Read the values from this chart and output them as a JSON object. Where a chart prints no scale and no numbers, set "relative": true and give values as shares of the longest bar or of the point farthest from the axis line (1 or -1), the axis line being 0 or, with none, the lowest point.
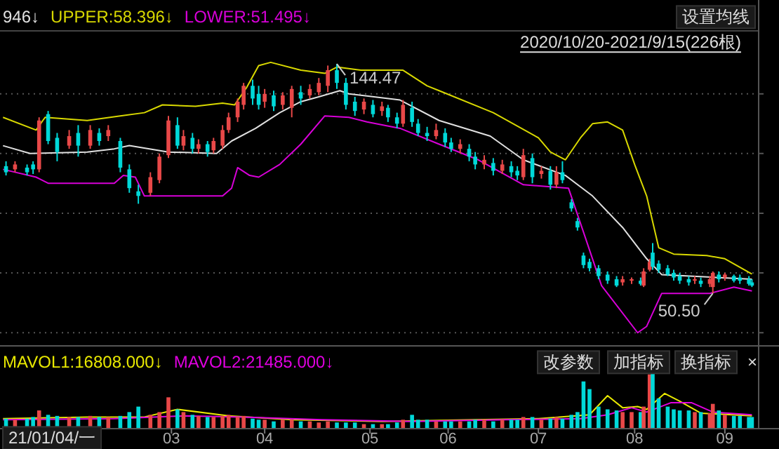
{
  "chart_data": [
    {
      "type": "candlestick",
      "xlim": [
        "2021-01-03",
        "2021-09-12"
      ],
      "ylim": [
        29.3,
        158.0
      ],
      "yticks": [
        {
          "value": 132.2,
          "label": null
        },
        {
          "value": 107.8,
          "label": null
        },
        {
          "value": 83.3,
          "label": null
        },
        {
          "value": 58.9,
          "label": null
        },
        {
          "value": 34.4,
          "label": null
        }
      ],
      "grid": "y",
      "tick_labels": false,
      "legend": "top left",
      "x": [
        "2021-01-05",
        "2021-01-08",
        "2021-01-12",
        "2021-01-14",
        "2021-01-16",
        "2021-01-19",
        "2021-01-22",
        "2021-01-26",
        "2021-01-29",
        "2021-02-02",
        "2021-02-05",
        "2021-02-08",
        "2021-02-12",
        "2021-02-15",
        "2021-02-18",
        "2021-02-22",
        "2021-02-25",
        "2021-02-28",
        "2021-03-03",
        "2021-03-05",
        "2021-03-08",
        "2021-03-10",
        "2021-03-13",
        "2021-03-15",
        "2021-03-18",
        "2021-03-20",
        "2021-03-23",
        "2021-03-25",
        "2021-03-28",
        "2021-03-30",
        "2021-04-01",
        "2021-04-04",
        "2021-04-07",
        "2021-04-10",
        "2021-04-13",
        "2021-04-16",
        "2021-04-19",
        "2021-04-22",
        "2021-04-25",
        "2021-04-28",
        "2021-05-01",
        "2021-05-04",
        "2021-05-07",
        "2021-05-10",
        "2021-05-12",
        "2021-05-15",
        "2021-05-17",
        "2021-05-20",
        "2021-05-22",
        "2021-05-25",
        "2021-05-28",
        "2021-05-31",
        "2021-06-02",
        "2021-06-05",
        "2021-06-08",
        "2021-06-10",
        "2021-06-13",
        "2021-06-16",
        "2021-06-19",
        "2021-06-22",
        "2021-06-24",
        "2021-06-26",
        "2021-06-29",
        "2021-07-02",
        "2021-07-05",
        "2021-07-07",
        "2021-07-09",
        "2021-07-12",
        "2021-07-14",
        "2021-07-16",
        "2021-07-18",
        "2021-07-21",
        "2021-07-24",
        "2021-07-27",
        "2021-07-29",
        "2021-08-01",
        "2021-08-04",
        "2021-08-05",
        "2021-08-07",
        "2021-08-08",
        "2021-08-10",
        "2021-08-13",
        "2021-08-15",
        "2021-08-17",
        "2021-08-20",
        "2021-08-22",
        "2021-08-24",
        "2021-08-27",
        "2021-08-28",
        "2021-08-30",
        "2021-09-01",
        "2021-09-04",
        "2021-09-06",
        "2021-09-09",
        "2021-09-10"
      ],
      "ohlc": [
        [
          102.6,
          104.6,
          98.8,
          100.1
        ],
        [
          101.3,
          104.6,
          100.1,
          103.3
        ],
        [
          102.0,
          103.3,
          98.8,
          100.1
        ],
        [
          103.3,
          104.6,
          99.4,
          101.3
        ],
        [
          101.3,
          122.6,
          100.1,
          121.3
        ],
        [
          123.9,
          125.2,
          111.6,
          112.9
        ],
        [
          114.2,
          116.2,
          104.6,
          108.4
        ],
        [
          111.0,
          117.4,
          109.7,
          114.9
        ],
        [
          116.2,
          119.4,
          106.5,
          111.0
        ],
        [
          111.0,
          119.4,
          109.7,
          117.4
        ],
        [
          116.2,
          118.1,
          111.0,
          112.9
        ],
        [
          114.9,
          119.4,
          112.9,
          117.4
        ],
        [
          112.9,
          114.2,
          100.1,
          102.0
        ],
        [
          101.3,
          103.3,
          91.7,
          93.6
        ],
        [
          92.3,
          95.0,
          87.2,
          90.4
        ],
        [
          91.7,
          100.1,
          90.4,
          98.1
        ],
        [
          96.9,
          107.8,
          95.6,
          106.5
        ],
        [
          107.1,
          123.2,
          105.9,
          121.3
        ],
        [
          119.4,
          122.6,
          109.7,
          111.0
        ],
        [
          111.0,
          117.4,
          109.1,
          114.9
        ],
        [
          114.2,
          116.2,
          107.8,
          109.7
        ],
        [
          109.7,
          113.6,
          107.8,
          111.6
        ],
        [
          111.6,
          112.9,
          106.5,
          108.4
        ],
        [
          109.1,
          114.2,
          107.8,
          112.9
        ],
        [
          111.0,
          119.4,
          109.7,
          117.4
        ],
        [
          117.4,
          124.5,
          116.2,
          122.6
        ],
        [
          122.6,
          130.3,
          120.7,
          129.0
        ],
        [
          127.7,
          136.7,
          125.8,
          135.5
        ],
        [
          135.5,
          138.0,
          127.7,
          130.3
        ],
        [
          132.2,
          135.5,
          125.8,
          127.7
        ],
        [
          129.0,
          134.2,
          126.5,
          132.2
        ],
        [
          131.6,
          133.5,
          125.2,
          127.1
        ],
        [
          127.7,
          132.9,
          125.8,
          131.6
        ],
        [
          126.5,
          135.5,
          122.6,
          134.2
        ],
        [
          132.9,
          135.5,
          127.7,
          130.3
        ],
        [
          131.6,
          136.1,
          130.3,
          134.2
        ],
        [
          132.9,
          138.7,
          131.6,
          136.7
        ],
        [
          135.5,
          143.8,
          132.9,
          141.9
        ],
        [
          141.9,
          144.47,
          134.2,
          136.7
        ],
        [
          136.7,
          138.7,
          125.8,
          127.7
        ],
        [
          129.0,
          131.0,
          123.2,
          125.2
        ],
        [
          125.8,
          130.3,
          123.9,
          129.0
        ],
        [
          127.7,
          129.7,
          122.6,
          123.9
        ],
        [
          125.2,
          129.0,
          123.2,
          127.1
        ],
        [
          126.5,
          127.7,
          120.7,
          122.6
        ],
        [
          122.6,
          124.5,
          118.1,
          120.0
        ],
        [
          120.0,
          129.7,
          118.7,
          127.7
        ],
        [
          126.5,
          129.0,
          118.7,
          120.7
        ],
        [
          120.0,
          121.9,
          114.9,
          116.2
        ],
        [
          116.2,
          118.7,
          112.9,
          114.9
        ],
        [
          114.9,
          120.0,
          113.6,
          117.4
        ],
        [
          116.2,
          118.1,
          110.4,
          112.3
        ],
        [
          112.3,
          114.2,
          108.4,
          109.7
        ],
        [
          109.7,
          113.6,
          107.8,
          111.6
        ],
        [
          109.7,
          111.6,
          104.6,
          106.5
        ],
        [
          106.5,
          108.4,
          101.3,
          103.3
        ],
        [
          103.3,
          107.1,
          101.3,
          105.2
        ],
        [
          103.9,
          105.9,
          98.8,
          100.7
        ],
        [
          100.7,
          105.2,
          99.4,
          103.3
        ],
        [
          102.6,
          104.6,
          98.1,
          100.1
        ],
        [
          100.7,
          102.6,
          96.9,
          98.8
        ],
        [
          98.1,
          109.7,
          96.9,
          107.1
        ],
        [
          105.9,
          107.8,
          95.6,
          98.1
        ],
        [
          99.4,
          102.6,
          97.5,
          100.7
        ],
        [
          100.7,
          102.6,
          93.0,
          95.0
        ],
        [
          95.0,
          102.6,
          93.6,
          100.1
        ],
        [
          100.1,
          104.6,
          95.6,
          96.9
        ],
        [
          87.8,
          89.1,
          84.0,
          85.3
        ],
        [
          80.1,
          81.4,
          76.2,
          77.5
        ],
        [
          66.0,
          67.2,
          60.8,
          62.1
        ],
        [
          63.4,
          64.7,
          59.5,
          60.8
        ],
        [
          60.8,
          62.1,
          56.3,
          57.6
        ],
        [
          58.2,
          59.5,
          54.4,
          55.7
        ],
        [
          56.3,
          57.6,
          53.1,
          53.7
        ],
        [
          55.0,
          57.6,
          53.7,
          56.3
        ],
        [
          55.7,
          57.0,
          54.4,
          56.3
        ],
        [
          55.7,
          57.0,
          53.7,
          54.4
        ],
        [
          53.7,
          60.8,
          53.1,
          59.5
        ],
        [
          60.2,
          64.7,
          59.5,
          63.4
        ],
        [
          67.2,
          71.1,
          60.2,
          61.4
        ],
        [
          62.7,
          64.0,
          58.9,
          60.2
        ],
        [
          60.8,
          62.1,
          57.6,
          58.2
        ],
        [
          58.9,
          60.2,
          55.7,
          57.0
        ],
        [
          57.6,
          58.9,
          54.4,
          55.7
        ],
        [
          56.3,
          57.6,
          53.7,
          55.0
        ],
        [
          55.7,
          57.6,
          54.4,
          56.3
        ],
        [
          55.7,
          57.0,
          53.1,
          54.4
        ],
        [
          54.4,
          57.6,
          53.1,
          56.3
        ],
        [
          53.1,
          59.5,
          50.5,
          58.9
        ],
        [
          58.2,
          59.5,
          55.0,
          56.3
        ],
        [
          57.0,
          58.9,
          55.7,
          58.2
        ],
        [
          57.6,
          58.2,
          55.0,
          55.7
        ],
        [
          57.0,
          58.2,
          54.4,
          55.7
        ],
        [
          56.3,
          57.6,
          53.7,
          54.4
        ],
        [
          55.0,
          56.3,
          53.1,
          53.7
        ]
      ],
      "colors": [
        "#00d8d8",
        "#e84848",
        "#00d8d8",
        "#00d8d8",
        "#e84848",
        "#00d8d8",
        "#00d8d8",
        "#e84848",
        "#00d8d8",
        "#e84848",
        "#00d8d8",
        "#e84848",
        "#00d8d8",
        "#00d8d8",
        "#00d8d8",
        "#e84848",
        "#e84848",
        "#e84848",
        "#00d8d8",
        "#e84848",
        "#00d8d8",
        "#e84848",
        "#00d8d8",
        "#e84848",
        "#e84848",
        "#e84848",
        "#e84848",
        "#e84848",
        "#00d8d8",
        "#00d8d8",
        "#e84848",
        "#00d8d8",
        "#e84848",
        "#e84848",
        "#00d8d8",
        "#e84848",
        "#e84848",
        "#e84848",
        "#00d8d8",
        "#00d8d8",
        "#00d8d8",
        "#e84848",
        "#00d8d8",
        "#e84848",
        "#00d8d8",
        "#00d8d8",
        "#e84848",
        "#00d8d8",
        "#00d8d8",
        "#00d8d8",
        "#e84848",
        "#00d8d8",
        "#00d8d8",
        "#e84848",
        "#00d8d8",
        "#00d8d8",
        "#e84848",
        "#00d8d8",
        "#e84848",
        "#00d8d8",
        "#00d8d8",
        "#e84848",
        "#00d8d8",
        "#e84848",
        "#00d8d8",
        "#e84848",
        "#00d8d8",
        "#00d8d8",
        "#00d8d8",
        "#00d8d8",
        "#00d8d8",
        "#00d8d8",
        "#00d8d8",
        "#00d8d8",
        "#e84848",
        "#e84848",
        "#00d8d8",
        "#e84848",
        "#e84848",
        "#00d8d8",
        "#00d8d8",
        "#00d8d8",
        "#00d8d8",
        "#00d8d8",
        "#00d8d8",
        "#e84848",
        "#00d8d8",
        "#e84848",
        "#e84848",
        "#00d8d8",
        "#e84848",
        "#00d8d8",
        "#00d8d8",
        "#00d8d8",
        "#00d8d8"
      ],
      "series": [
        {
          "type": "line",
          "name": "946↓",
          "color": "#e0e0e0",
          "x": [
            "2021-01-04",
            "2021-01-13",
            "2021-02-01",
            "2021-02-10",
            "2021-02-15",
            "2021-02-28",
            "2021-03-16",
            "2021-03-21",
            "2021-03-29",
            "2021-04-06",
            "2021-04-13",
            "2021-04-19",
            "2021-04-26",
            "2021-04-29",
            "2021-05-16",
            "2021-05-29",
            "2021-06-15",
            "2021-06-26",
            "2021-07-10",
            "2021-07-19",
            "2021-07-29",
            "2021-08-06",
            "2021-08-11",
            "2021-09-10"
          ],
          "values": [
            111.0,
            107.8,
            108.4,
            109.7,
            111.0,
            108.4,
            107.8,
            112.9,
            118.1,
            124.5,
            129.0,
            131.0,
            133.5,
            132.2,
            129.7,
            121.3,
            114.9,
            105.2,
            98.8,
            90.4,
            77.5,
            64.7,
            58.2,
            56.3
          ]
        },
        {
          "type": "line",
          "name": "UPPER:58.396↓",
          "color": "#d8d800",
          "x": [
            "2021-01-04",
            "2021-01-15",
            "2021-01-18",
            "2021-02-01",
            "2021-02-12",
            "2021-02-20",
            "2021-02-26",
            "2021-03-09",
            "2021-03-18",
            "2021-03-22",
            "2021-03-26",
            "2021-03-30",
            "2021-04-03",
            "2021-04-13",
            "2021-04-21",
            "2021-04-25",
            "2021-05-03",
            "2021-05-17",
            "2021-05-25",
            "2021-05-29",
            "2021-06-16",
            "2021-07-01",
            "2021-07-05",
            "2021-07-10",
            "2021-07-15",
            "2021-07-19",
            "2021-07-24",
            "2021-07-29",
            "2021-08-02",
            "2021-08-06",
            "2021-08-10",
            "2021-08-15",
            "2021-08-26",
            "2021-09-01",
            "2021-09-10"
          ],
          "values": [
            122.6,
            117.4,
            122.6,
            121.3,
            123.2,
            124.5,
            127.7,
            127.1,
            128.4,
            127.7,
            134.8,
            143.8,
            145.1,
            141.9,
            140.6,
            143.2,
            141.9,
            141.9,
            135.5,
            133.5,
            124.5,
            114.2,
            108.4,
            105.2,
            114.2,
            120.0,
            120.7,
            117.4,
            103.3,
            90.4,
            69.2,
            66.6,
            66.0,
            64.7,
            58.4
          ]
        },
        {
          "type": "line",
          "name": "LOWER:51.495↓",
          "color": "#d800d8",
          "x": [
            "2021-01-04",
            "2021-01-15",
            "2021-01-19",
            "2021-02-10",
            "2021-02-13",
            "2021-02-17",
            "2021-02-20",
            "2021-03-18",
            "2021-03-21",
            "2021-03-23",
            "2021-03-27",
            "2021-03-30",
            "2021-04-06",
            "2021-04-13",
            "2021-04-21",
            "2021-04-29",
            "2021-05-05",
            "2021-05-16",
            "2021-05-29",
            "2021-06-11",
            "2021-06-26",
            "2021-07-11",
            "2021-07-16",
            "2021-07-22",
            "2021-08-03",
            "2021-08-06",
            "2021-08-11",
            "2021-08-27",
            "2021-09-04",
            "2021-09-10"
          ],
          "values": [
            101.3,
            98.1,
            95.6,
            95.6,
            98.8,
            98.1,
            90.4,
            90.4,
            93.6,
            102.0,
            98.8,
            98.1,
            103.3,
            111.6,
            123.2,
            122.6,
            120.7,
            118.1,
            111.6,
            105.2,
            95.0,
            93.6,
            75.6,
            53.7,
            34.4,
            37.0,
            50.5,
            50.5,
            53.1,
            51.5
          ]
        }
      ],
      "annotations": [
        "设置均线",
        "2020/10/20-2021/9/15(226根)",
        {
          "text": "144.47",
          "x": "2021-04-25",
          "y": 144.47
        },
        {
          "text": "50.50",
          "x": "2021-08-28",
          "y": 50.5
        }
      ]
    },
    {
      "type": "bar",
      "relative": true,
      "xlim": [
        "2021-01-03",
        "2021-09-12"
      ],
      "tick_labels": "x",
      "legend": "top left",
      "xticks": [
        {
          "value": "2021-03-01",
          "label": "03"
        },
        {
          "value": "2021-04-01",
          "label": "04"
        },
        {
          "value": "2021-05-06",
          "label": "05"
        },
        {
          "value": "2021-06-01",
          "label": "06"
        },
        {
          "value": "2021-07-01",
          "label": "07"
        },
        {
          "value": "2021-08-02",
          "label": "08"
        },
        {
          "value": "2021-09-01",
          "label": "09"
        }
      ],
      "x": [
        "2021-01-05",
        "2021-01-08",
        "2021-01-12",
        "2021-01-14",
        "2021-01-16",
        "2021-01-19",
        "2021-01-22",
        "2021-01-26",
        "2021-01-29",
        "2021-02-02",
        "2021-02-05",
        "2021-02-08",
        "2021-02-12",
        "2021-02-15",
        "2021-02-18",
        "2021-02-22",
        "2021-02-25",
        "2021-02-28",
        "2021-03-03",
        "2021-03-05",
        "2021-03-08",
        "2021-03-10",
        "2021-03-13",
        "2021-03-15",
        "2021-03-18",
        "2021-03-20",
        "2021-03-23",
        "2021-03-25",
        "2021-03-28",
        "2021-03-30",
        "2021-04-01",
        "2021-04-04",
        "2021-04-07",
        "2021-04-10",
        "2021-04-13",
        "2021-04-16",
        "2021-04-19",
        "2021-04-22",
        "2021-04-25",
        "2021-04-28",
        "2021-05-01",
        "2021-05-04",
        "2021-05-07",
        "2021-05-10",
        "2021-05-12",
        "2021-05-15",
        "2021-05-17",
        "2021-05-20",
        "2021-05-22",
        "2021-05-25",
        "2021-05-28",
        "2021-05-31",
        "2021-06-02",
        "2021-06-05",
        "2021-06-08",
        "2021-06-10",
        "2021-06-13",
        "2021-06-16",
        "2021-06-19",
        "2021-06-22",
        "2021-06-24",
        "2021-06-26",
        "2021-06-29",
        "2021-07-02",
        "2021-07-05",
        "2021-07-07",
        "2021-07-09",
        "2021-07-12",
        "2021-07-14",
        "2021-07-16",
        "2021-07-18",
        "2021-07-21",
        "2021-07-24",
        "2021-07-27",
        "2021-07-29",
        "2021-08-01",
        "2021-08-04",
        "2021-08-05",
        "2021-08-07",
        "2021-08-08",
        "2021-08-10",
        "2021-08-13",
        "2021-08-15",
        "2021-08-17",
        "2021-08-20",
        "2021-08-22",
        "2021-08-24",
        "2021-08-27",
        "2021-08-28",
        "2021-08-30",
        "2021-09-01",
        "2021-09-04",
        "2021-09-06",
        "2021-09-09",
        "2021-09-10"
      ],
      "values": [
        0.17,
        0.15,
        0.17,
        0.2,
        0.32,
        0.24,
        0.22,
        0.2,
        0.2,
        0.22,
        0.2,
        0.2,
        0.22,
        0.29,
        0.39,
        0.24,
        0.29,
        0.56,
        0.34,
        0.29,
        0.24,
        0.22,
        0.2,
        0.2,
        0.22,
        0.24,
        0.2,
        0.22,
        0.17,
        0.15,
        0.15,
        0.12,
        0.15,
        0.15,
        0.12,
        0.12,
        0.1,
        0.12,
        0.1,
        0.1,
        0.1,
        0.07,
        0.07,
        0.07,
        0.07,
        0.1,
        0.15,
        0.24,
        0.15,
        0.15,
        0.12,
        0.12,
        0.12,
        0.12,
        0.12,
        0.15,
        0.15,
        0.12,
        0.15,
        0.15,
        0.15,
        0.2,
        0.2,
        0.15,
        0.17,
        0.2,
        0.17,
        0.24,
        0.29,
        0.85,
        0.71,
        0.39,
        0.34,
        0.32,
        0.29,
        0.29,
        0.29,
        0.39,
        0.98,
        1,
        0.54,
        0.39,
        0.34,
        0.32,
        0.32,
        0.29,
        0.29,
        0.27,
        0.44,
        0.32,
        0.24,
        0.22,
        0.22,
        0.2,
        0.2
      ],
      "colors": [
        "#00d8d8",
        "#e84848",
        "#00d8d8",
        "#00d8d8",
        "#e84848",
        "#00d8d8",
        "#00d8d8",
        "#e84848",
        "#00d8d8",
        "#e84848",
        "#00d8d8",
        "#e84848",
        "#00d8d8",
        "#00d8d8",
        "#00d8d8",
        "#e84848",
        "#e84848",
        "#e84848",
        "#00d8d8",
        "#e84848",
        "#00d8d8",
        "#e84848",
        "#00d8d8",
        "#e84848",
        "#e84848",
        "#e84848",
        "#e84848",
        "#e84848",
        "#00d8d8",
        "#00d8d8",
        "#e84848",
        "#00d8d8",
        "#e84848",
        "#e84848",
        "#00d8d8",
        "#e84848",
        "#e84848",
        "#e84848",
        "#00d8d8",
        "#00d8d8",
        "#00d8d8",
        "#e84848",
        "#00d8d8",
        "#e84848",
        "#00d8d8",
        "#00d8d8",
        "#e84848",
        "#00d8d8",
        "#00d8d8",
        "#00d8d8",
        "#e84848",
        "#00d8d8",
        "#00d8d8",
        "#e84848",
        "#00d8d8",
        "#00d8d8",
        "#e84848",
        "#00d8d8",
        "#e84848",
        "#00d8d8",
        "#00d8d8",
        "#e84848",
        "#00d8d8",
        "#e84848",
        "#00d8d8",
        "#e84848",
        "#00d8d8",
        "#00d8d8",
        "#00d8d8",
        "#00d8d8",
        "#00d8d8",
        "#00d8d8",
        "#00d8d8",
        "#00d8d8",
        "#e84848",
        "#e84848",
        "#00d8d8",
        "#e84848",
        "#e84848",
        "#00d8d8",
        "#00d8d8",
        "#00d8d8",
        "#00d8d8",
        "#00d8d8",
        "#00d8d8",
        "#e84848",
        "#00d8d8",
        "#e84848",
        "#e84848",
        "#00d8d8",
        "#e84848",
        "#00d8d8",
        "#00d8d8",
        "#00d8d8",
        "#00d8d8"
      ],
      "series": [
        {
          "type": "line",
          "name": "MAVOL1:16808.000↓",
          "color": "#e8e800",
          "x": [
            "2021-01-04",
            "2021-02-01",
            "2021-02-20",
            "2021-03-03",
            "2021-03-20",
            "2021-04-10",
            "2021-05-10",
            "2021-06-10",
            "2021-07-01",
            "2021-07-18",
            "2021-07-24",
            "2021-07-29",
            "2021-08-03",
            "2021-08-06",
            "2021-08-12",
            "2021-08-17",
            "2021-08-24",
            "2021-09-10"
          ],
          "values": [
            0.17,
            0.2,
            0.2,
            0.34,
            0.22,
            0.15,
            0.12,
            0.15,
            0.17,
            0.24,
            0.59,
            0.37,
            0.39,
            0.34,
            0.63,
            0.49,
            0.27,
            0.22
          ]
        },
        {
          "type": "line",
          "name": "MAVOL2:21485.000↓",
          "color": "#e000e0",
          "x": [
            "2021-01-04",
            "2021-02-10",
            "2021-03-05",
            "2021-03-25",
            "2021-04-20",
            "2021-05-20",
            "2021-06-20",
            "2021-07-15",
            "2021-07-24",
            "2021-08-01",
            "2021-08-06",
            "2021-08-14",
            "2021-08-21",
            "2021-08-28",
            "2021-09-10"
          ],
          "values": [
            0.15,
            0.17,
            0.22,
            0.2,
            0.15,
            0.12,
            0.15,
            0.17,
            0.24,
            0.37,
            0.29,
            0.46,
            0.46,
            0.29,
            0.24
          ]
        }
      ],
      "annotations": [
        "21/01/04/一",
        "改参数",
        "加指标",
        "换指标",
        "×"
      ]
    }
  ]
}
